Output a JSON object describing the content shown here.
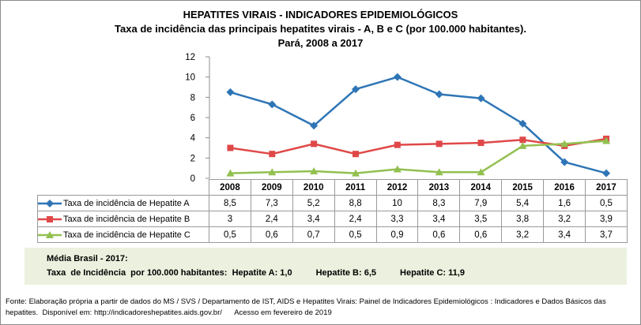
{
  "title": {
    "line1": "HEPATITES VIRAIS - INDICADORES EPIDEMIOLÓGICOS",
    "line2": "Taxa de incidência das principais hepatites virais - A, B e C (por 100.000 habitantes).",
    "line3": "Pará, 2008 a 2017"
  },
  "chart_data": {
    "type": "line",
    "categories": [
      "2008",
      "2009",
      "2010",
      "2011",
      "2012",
      "2013",
      "2014",
      "2015",
      "2016",
      "2017"
    ],
    "ylim": [
      0,
      12
    ],
    "yticks": [
      "0",
      "2",
      "4",
      "6",
      "8",
      "10",
      "12"
    ],
    "grid": false,
    "legend": "data-table",
    "series": [
      {
        "name": "Taxa de incidência de Hepatite A",
        "color": "#2e75b6",
        "marker": "diamond",
        "values": [
          8.5,
          7.3,
          5.2,
          8.8,
          10,
          8.3,
          7.9,
          5.4,
          1.6,
          0.5
        ],
        "labels": [
          "8,5",
          "7,3",
          "5,2",
          "8,8",
          "10",
          "8,3",
          "7,9",
          "5,4",
          "1,6",
          "0,5"
        ]
      },
      {
        "name": "Taxa de incidência de Hepatite B",
        "color": "#e04848",
        "marker": "square",
        "values": [
          3,
          2.4,
          3.4,
          2.4,
          3.3,
          3.4,
          3.5,
          3.8,
          3.2,
          3.9
        ],
        "labels": [
          "3",
          "2,4",
          "3,4",
          "2,4",
          "3,3",
          "3,4",
          "3,5",
          "3,8",
          "3,2",
          "3,9"
        ]
      },
      {
        "name": "Taxa de incidência de Hepatite C",
        "color": "#92c050",
        "marker": "triangle",
        "values": [
          0.5,
          0.6,
          0.7,
          0.5,
          0.9,
          0.6,
          0.6,
          3.2,
          3.4,
          3.7
        ],
        "labels": [
          "0,5",
          "0,6",
          "0,7",
          "0,5",
          "0,9",
          "0,6",
          "0,6",
          "3,2",
          "3,4",
          "3,7"
        ]
      }
    ]
  },
  "media": {
    "line1": "Média Brasil - 2017:",
    "prefix": "Taxa  de Incidência  por 100.000 habitantes:",
    "a": "Hepatite A: 1,0",
    "b": "Hepatite B: 6,5",
    "c": "Hepatite C: 11,9"
  },
  "fonte": {
    "line1": "Fonte: Elaboração própria a partir de dados do MS / SVS / Departamento de IST, AIDS e Hepatites Virais:  Painel de Indicadores Epidemiológicos : Indicadores e Dados Básicos das",
    "line2": "hepatites.  Disponível em: http://indicadoreshepatites.aids.gov.br/      Acesso em fevereiro de 2019"
  }
}
